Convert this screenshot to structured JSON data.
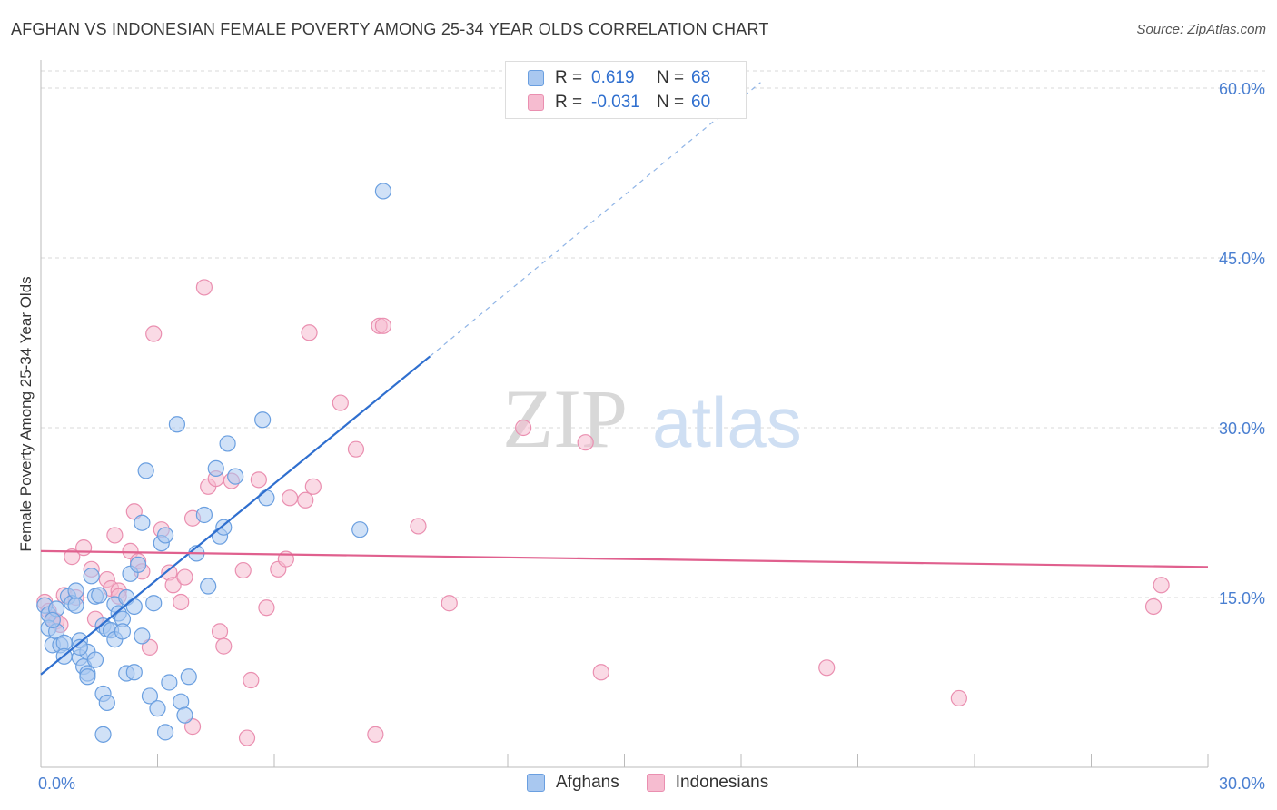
{
  "header": {
    "title": "AFGHAN VS INDONESIAN FEMALE POVERTY AMONG 25-34 YEAR OLDS CORRELATION CHART",
    "source": "Source: ZipAtlas.com"
  },
  "watermark": {
    "zip": "ZIP",
    "atlas": "atlas"
  },
  "legend": {
    "rows": [
      {
        "r_label": "R =",
        "r_value": "0.619",
        "n_label": "N =",
        "n_value": "68"
      },
      {
        "r_label": "R =",
        "r_value": "-0.031",
        "n_label": "N =",
        "n_value": "60"
      }
    ]
  },
  "bottom_legend": {
    "afghans": "Afghans",
    "indonesians": "Indonesians"
  },
  "colors": {
    "afghans_fill": "#a9c8f0",
    "afghans_stroke": "#6a9fe0",
    "afghans_line": "#2f6fcf",
    "indonesians_fill": "#f6bcd0",
    "indonesians_stroke": "#ea8fb0",
    "indonesians_line": "#e0608e",
    "tick_label": "#4a7fd1"
  },
  "chart_data": {
    "type": "scatter",
    "title": "AFGHAN VS INDONESIAN FEMALE POVERTY AMONG 25-34 YEAR OLDS CORRELATION CHART",
    "xlabel": "",
    "ylabel": "Female Poverty Among 25-34 Year Olds",
    "xlim": [
      0,
      30
    ],
    "ylim": [
      0,
      62.5
    ],
    "x_tick_labels": [
      "0.0%",
      "30.0%"
    ],
    "y_ticks": [
      15,
      30,
      45,
      60
    ],
    "y_tick_labels": [
      "15.0%",
      "30.0%",
      "45.0%",
      "60.0%"
    ],
    "grid": true,
    "series": [
      {
        "name": "Afghans",
        "points": [
          [
            0.1,
            14.3
          ],
          [
            0.2,
            13.5
          ],
          [
            0.2,
            12.3
          ],
          [
            0.3,
            10.8
          ],
          [
            0.4,
            12.0
          ],
          [
            0.4,
            14.0
          ],
          [
            0.5,
            10.8
          ],
          [
            0.6,
            11.0
          ],
          [
            0.6,
            9.8
          ],
          [
            0.7,
            15.1
          ],
          [
            0.8,
            14.5
          ],
          [
            0.9,
            14.3
          ],
          [
            0.9,
            15.6
          ],
          [
            1.0,
            11.2
          ],
          [
            1.0,
            9.7
          ],
          [
            1.1,
            8.9
          ],
          [
            1.2,
            10.2
          ],
          [
            1.2,
            8.3
          ],
          [
            1.3,
            16.9
          ],
          [
            1.4,
            9.5
          ],
          [
            1.4,
            15.1
          ],
          [
            1.5,
            15.2
          ],
          [
            1.6,
            6.5
          ],
          [
            1.6,
            12.5
          ],
          [
            1.7,
            12.2
          ],
          [
            1.7,
            5.7
          ],
          [
            1.8,
            12.1
          ],
          [
            1.9,
            14.4
          ],
          [
            1.9,
            11.3
          ],
          [
            2.0,
            13.6
          ],
          [
            2.1,
            13.1
          ],
          [
            2.2,
            15.0
          ],
          [
            2.2,
            8.3
          ],
          [
            2.3,
            17.1
          ],
          [
            2.4,
            14.2
          ],
          [
            2.4,
            8.4
          ],
          [
            2.5,
            17.9
          ],
          [
            2.6,
            21.6
          ],
          [
            2.6,
            11.6
          ],
          [
            2.7,
            26.2
          ],
          [
            2.8,
            6.3
          ],
          [
            2.9,
            14.5
          ],
          [
            3.0,
            5.2
          ],
          [
            3.1,
            19.8
          ],
          [
            3.2,
            20.5
          ],
          [
            3.2,
            3.1
          ],
          [
            3.3,
            7.5
          ],
          [
            3.5,
            30.3
          ],
          [
            3.6,
            5.8
          ],
          [
            3.7,
            4.6
          ],
          [
            3.8,
            8.0
          ],
          [
            4.0,
            18.9
          ],
          [
            4.2,
            22.3
          ],
          [
            4.3,
            16.0
          ],
          [
            4.5,
            26.4
          ],
          [
            4.6,
            20.4
          ],
          [
            4.7,
            21.2
          ],
          [
            4.8,
            28.6
          ],
          [
            5.0,
            25.7
          ],
          [
            5.7,
            30.7
          ],
          [
            5.8,
            23.8
          ],
          [
            8.2,
            21.0
          ],
          [
            8.8,
            50.9
          ],
          [
            1.6,
            2.9
          ],
          [
            1.2,
            8.0
          ],
          [
            1.0,
            10.6
          ],
          [
            0.3,
            13.0
          ],
          [
            2.1,
            12.0
          ]
        ],
        "fit": {
          "x0": 0,
          "y0": 8.2,
          "x1": 10.0,
          "y1": 36.3,
          "dash_to": [
            18.5,
            60.5
          ]
        }
      },
      {
        "name": "Indonesians",
        "points": [
          [
            0.1,
            14.6
          ],
          [
            0.2,
            13.8
          ],
          [
            0.3,
            13.1
          ],
          [
            0.4,
            12.9
          ],
          [
            0.5,
            12.6
          ],
          [
            0.6,
            15.2
          ],
          [
            0.8,
            18.6
          ],
          [
            0.9,
            15.0
          ],
          [
            1.1,
            19.4
          ],
          [
            1.3,
            17.5
          ],
          [
            1.4,
            13.1
          ],
          [
            1.7,
            16.6
          ],
          [
            1.8,
            15.8
          ],
          [
            1.9,
            20.5
          ],
          [
            2.0,
            15.6
          ],
          [
            2.3,
            19.1
          ],
          [
            2.4,
            22.6
          ],
          [
            2.5,
            18.2
          ],
          [
            2.6,
            17.3
          ],
          [
            2.8,
            10.6
          ],
          [
            2.9,
            38.3
          ],
          [
            3.1,
            21.0
          ],
          [
            3.3,
            17.2
          ],
          [
            3.4,
            16.1
          ],
          [
            3.6,
            14.6
          ],
          [
            3.7,
            16.8
          ],
          [
            3.9,
            22.0
          ],
          [
            3.9,
            3.6
          ],
          [
            4.2,
            42.4
          ],
          [
            4.3,
            24.8
          ],
          [
            4.5,
            25.5
          ],
          [
            4.6,
            12.0
          ],
          [
            4.7,
            10.7
          ],
          [
            4.9,
            25.3
          ],
          [
            5.2,
            17.4
          ],
          [
            5.4,
            7.7
          ],
          [
            5.6,
            25.4
          ],
          [
            5.8,
            14.1
          ],
          [
            6.1,
            17.5
          ],
          [
            6.3,
            18.4
          ],
          [
            6.4,
            23.8
          ],
          [
            6.8,
            23.6
          ],
          [
            7.0,
            24.8
          ],
          [
            6.9,
            38.4
          ],
          [
            7.7,
            32.2
          ],
          [
            8.1,
            28.1
          ],
          [
            8.7,
            39.0
          ],
          [
            8.8,
            39.0
          ],
          [
            8.6,
            2.9
          ],
          [
            9.7,
            21.3
          ],
          [
            10.5,
            14.5
          ],
          [
            12.4,
            30.0
          ],
          [
            14.0,
            28.7
          ],
          [
            14.4,
            8.4
          ],
          [
            20.2,
            8.8
          ],
          [
            23.6,
            6.1
          ],
          [
            28.6,
            14.2
          ],
          [
            28.8,
            16.1
          ],
          [
            5.3,
            2.6
          ],
          [
            2.0,
            15.1
          ]
        ],
        "fit": {
          "x0": 0,
          "y0": 19.1,
          "x1": 30,
          "y1": 17.7
        }
      }
    ]
  }
}
